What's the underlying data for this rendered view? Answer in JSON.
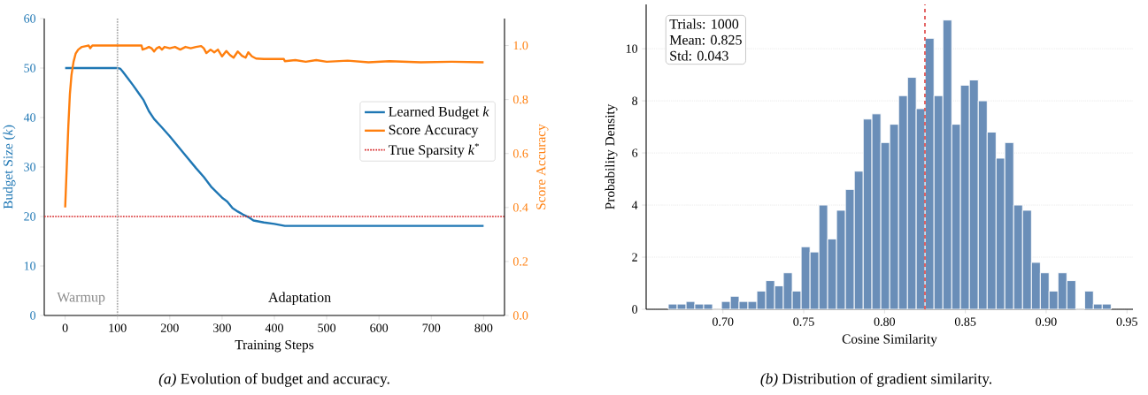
{
  "chart_data": [
    {
      "type": "line",
      "xlabel": "Training Steps",
      "ylabel": "Budget Size (*k*)",
      "y2label": "Score Accuracy",
      "xlim": [
        -40,
        840
      ],
      "xticks": [
        0,
        100,
        200,
        300,
        400,
        500,
        600,
        700,
        800
      ],
      "ylim": [
        0,
        60
      ],
      "yticks": [
        0,
        10,
        20,
        30,
        40,
        50,
        60
      ],
      "y2lim": [
        0,
        1.1
      ],
      "y2ticks": [
        {
          "value": 0,
          "label": "0.0"
        },
        0.2,
        0.4,
        0.6,
        0.8,
        {
          "value": 1,
          "label": "1.0"
        }
      ],
      "legend": "right",
      "series": [
        {
          "name": "Learned Budget *k*",
          "color": "#1f77b4",
          "x": [
            0,
            100,
            105,
            110,
            120,
            130,
            140,
            150,
            160,
            170,
            185,
            200,
            225,
            250,
            265,
            280,
            300,
            310,
            320,
            330,
            340,
            350,
            360,
            380,
            400,
            420,
            500,
            800
          ],
          "values": [
            50,
            50,
            49.9,
            49.3,
            47.9,
            46.5,
            45,
            43.5,
            41.3,
            39.7,
            38,
            36.2,
            33,
            29.8,
            28,
            25.9,
            23.8,
            23,
            21.7,
            21,
            20.4,
            19.9,
            19.2,
            18.8,
            18.5,
            18.1,
            18.1,
            18.1
          ]
        },
        {
          "name": "Score Accuracy",
          "color": "#ff7f0e",
          "axis": "y2",
          "x": [
            0,
            3,
            6,
            9,
            12,
            16,
            20,
            25,
            32,
            40,
            45,
            48,
            52,
            100,
            146,
            148,
            155,
            160,
            165,
            170,
            175,
            180,
            185,
            190,
            200,
            210,
            220,
            230,
            240,
            250,
            260,
            265,
            270,
            278,
            285,
            292,
            300,
            308,
            315,
            322,
            330,
            338,
            345,
            350,
            357,
            365,
            380,
            418,
            420,
            440,
            460,
            480,
            500,
            540,
            580,
            620,
            680,
            740,
            800
          ],
          "values": [
            0.4,
            0.55,
            0.7,
            0.82,
            0.89,
            0.94,
            0.97,
            0.985,
            0.995,
            0.998,
            1.0,
            0.99,
            1.0,
            1.0,
            1.0,
            0.985,
            0.99,
            0.995,
            0.99,
            0.978,
            0.99,
            0.995,
            0.985,
            0.995,
            0.99,
            0.995,
            0.985,
            0.995,
            0.99,
            0.995,
            0.998,
            0.99,
            0.972,
            0.985,
            0.975,
            0.985,
            0.96,
            0.98,
            0.965,
            0.955,
            0.978,
            0.962,
            0.955,
            0.975,
            0.96,
            0.952,
            0.95,
            0.95,
            0.942,
            0.946,
            0.94,
            0.946,
            0.94,
            0.944,
            0.938,
            0.942,
            0.938,
            0.94,
            0.938
          ]
        }
      ],
      "ref_lines": [
        {
          "axis": "y",
          "value": 20,
          "label": "True Sparsity *k*$^{*}$",
          "color": "#d62728",
          "line_style": "dotted"
        },
        {
          "axis": "x",
          "value": 100,
          "color": "#aaaaaa",
          "line_style": "dotted"
        }
      ],
      "annotations": [
        "Warmup",
        "Adaptation",
        "*(a)* Evolution of budget and accuracy."
      ]
    },
    {
      "type": "histogram",
      "xlabel": "Cosine Similarity",
      "ylabel": "Probability Density",
      "color": "#6a8eb8",
      "xlim": [
        0.6525,
        0.9537
      ],
      "xticks": [
        {
          "value": 0.7,
          "label": "0.70"
        },
        0.75,
        {
          "value": 0.8,
          "label": "0.80"
        },
        0.85,
        {
          "value": 0.9,
          "label": "0.90"
        },
        0.95
      ],
      "ylim": [
        0,
        11.7
      ],
      "yticks": [
        0,
        2,
        4,
        6,
        8,
        10
      ],
      "grid": "y",
      "bins": [
        0.6662,
        0.6717,
        0.6772,
        0.6826,
        0.6881,
        0.6936,
        0.6991,
        0.7046,
        0.71,
        0.7155,
        0.721,
        0.7265,
        0.732,
        0.7374,
        0.7429,
        0.7484,
        0.7539,
        0.7594,
        0.7648,
        0.7703,
        0.7758,
        0.7813,
        0.7868,
        0.7922,
        0.7977,
        0.8032,
        0.8087,
        0.8142,
        0.8196,
        0.8251,
        0.8306,
        0.8361,
        0.8416,
        0.847,
        0.8525,
        0.858,
        0.8635,
        0.869,
        0.8744,
        0.8799,
        0.8854,
        0.8909,
        0.8964,
        0.9018,
        0.9073,
        0.9128,
        0.9183,
        0.9238,
        0.9292,
        0.9347,
        0.9402
      ],
      "values": [
        0.2,
        0.2,
        0.3,
        0.2,
        0.2,
        0,
        0.3,
        0.5,
        0.3,
        0.3,
        0.7,
        1.1,
        0.9,
        1.4,
        0.7,
        2.4,
        2.2,
        4.0,
        2.7,
        3.8,
        4.6,
        5.3,
        7.3,
        7.5,
        6.4,
        7.1,
        8.2,
        8.9,
        7.7,
        10.4,
        8.2,
        11.1,
        7.1,
        8.6,
        8.8,
        8.0,
        6.8,
        5.8,
        6.4,
        4.0,
        3.8,
        1.8,
        1.4,
        0.7,
        1.4,
        1.1,
        0,
        0.7,
        0.2,
        0.2
      ],
      "ref_lines": [
        {
          "axis": "x",
          "value": 0.825,
          "color": "#e05252",
          "line_style": "dashed"
        }
      ],
      "annotations": [
        "Trials: 1000",
        "Mean: 0.825",
        "Std: 0.043",
        "*(b)* Distribution of gradient similarity."
      ]
    }
  ]
}
